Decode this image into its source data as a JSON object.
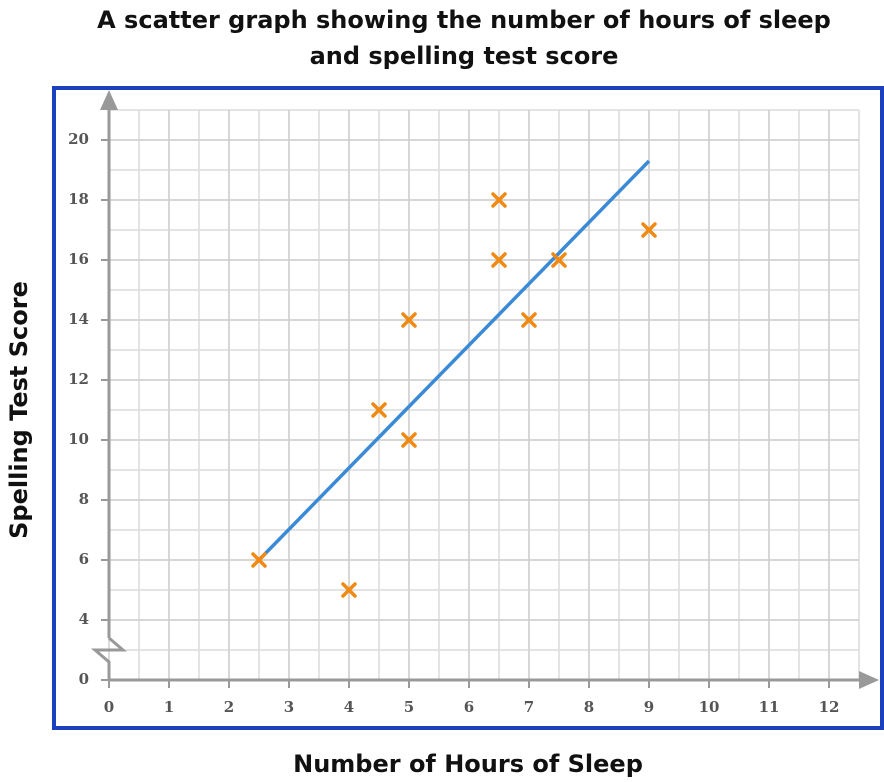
{
  "chart_data": {
    "type": "scatter",
    "title": "A scatter graph showing the number of hours of sleep and spelling test score",
    "x_label": "Number of Hours of Sleep",
    "y_label": "Spelling Test Score",
    "x": [
      2.5,
      4,
      4.5,
      5,
      5,
      6.5,
      6.5,
      7,
      7.5,
      9
    ],
    "series": [
      {
        "color": "#f08a12",
        "values": [
          6,
          5,
          11,
          14,
          10,
          18,
          16,
          14,
          16,
          17
        ]
      }
    ],
    "trend_line": {
      "color": "#3b8ad6",
      "x": [
        2.5,
        9
      ],
      "y": [
        6,
        19.3
      ]
    },
    "xlim": [
      0,
      12.5
    ],
    "ylim": [
      0,
      21
    ],
    "xticks": [
      0,
      1,
      2,
      3,
      4,
      5,
      6,
      7,
      8,
      9,
      10,
      11,
      12
    ],
    "yticks": [
      0,
      4,
      6,
      8,
      10,
      12,
      14,
      16,
      18,
      20
    ],
    "y_axis_break": true,
    "grid": true
  }
}
